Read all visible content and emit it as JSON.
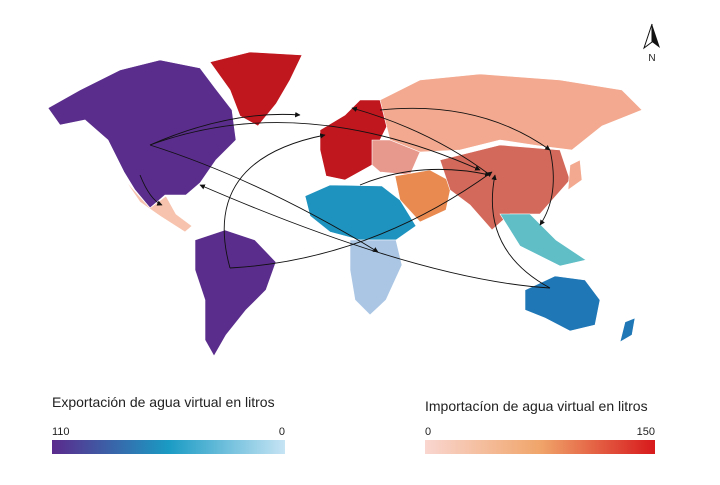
{
  "north_label": "N",
  "legends": [
    {
      "title": "Exportación de agua virtual en litros",
      "min_label": 110,
      "max_label": 0
    },
    {
      "title": "Importacíon de agua virtual en litros",
      "min_label": 0,
      "max_label": 150
    }
  ]
}
